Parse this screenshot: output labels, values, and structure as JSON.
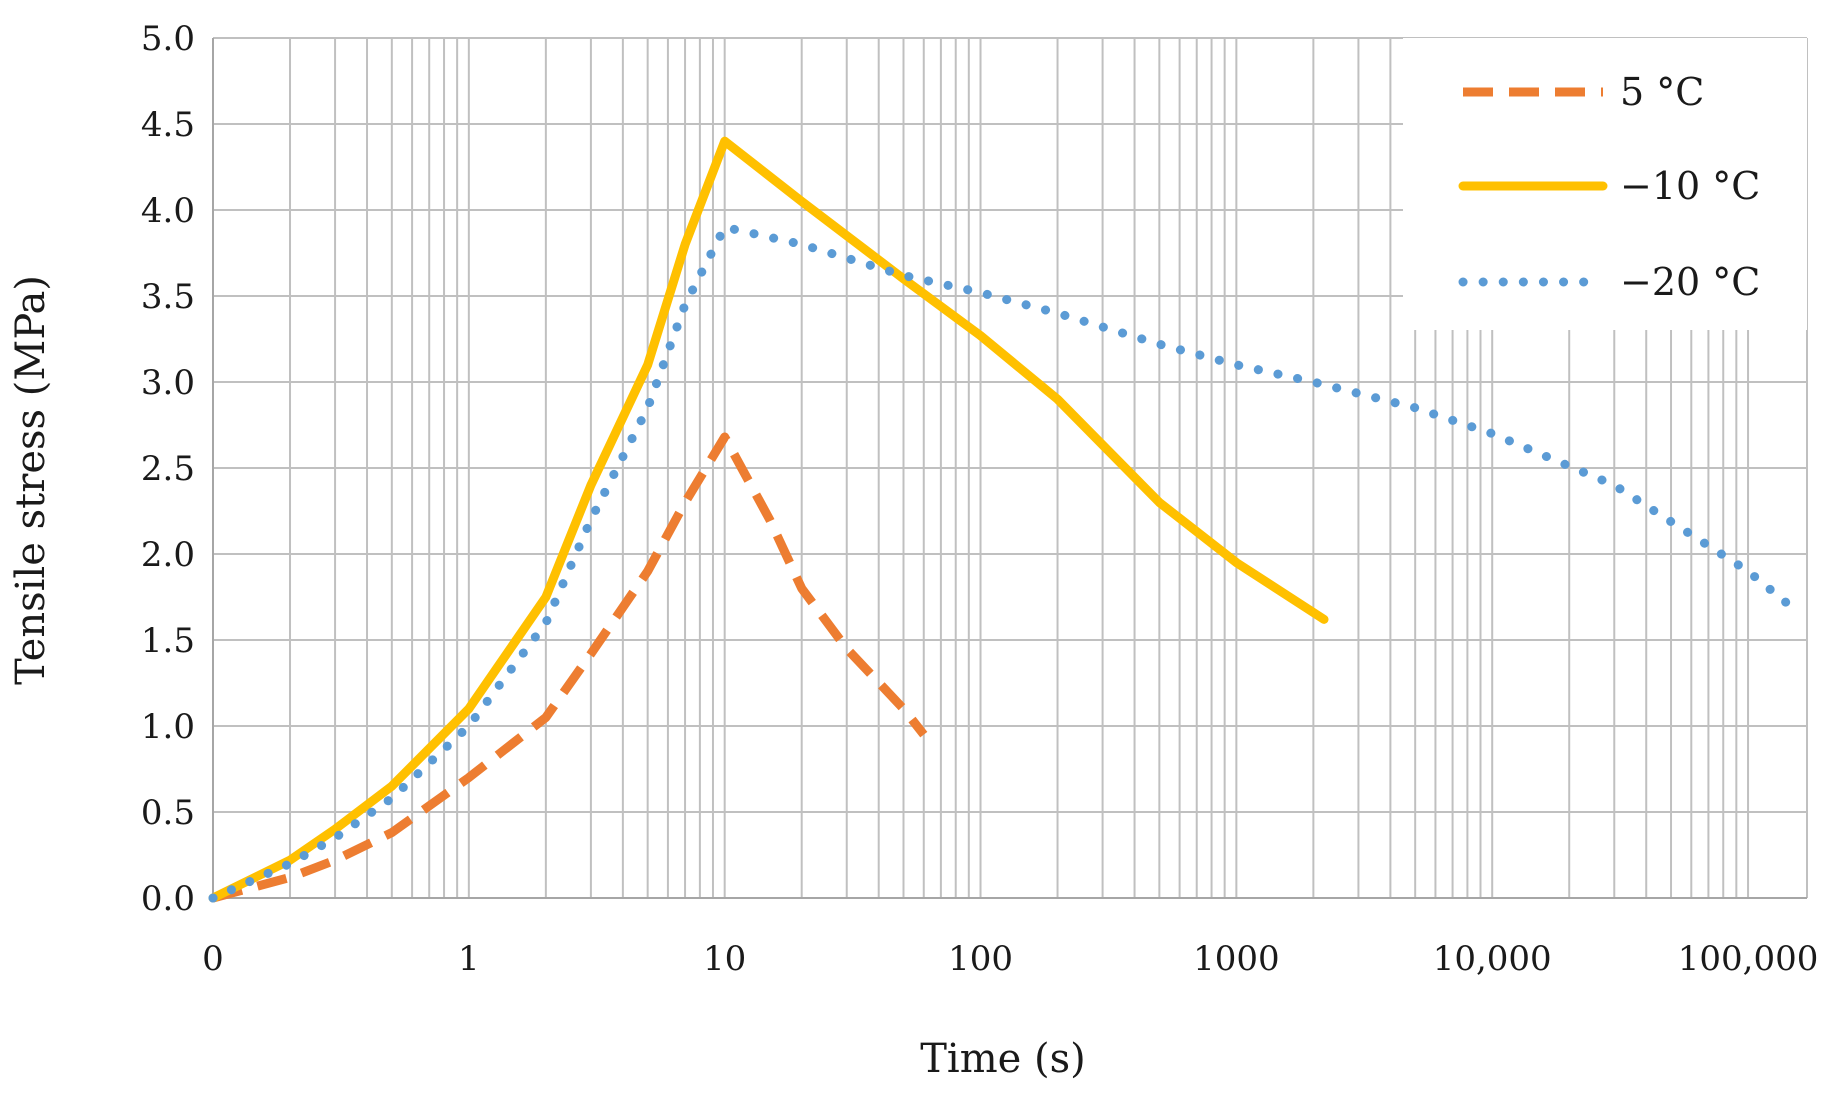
{
  "chart_data": {
    "type": "line",
    "title": "",
    "xlabel": "Time (s)",
    "ylabel": "Tensile stress (MPa)",
    "xscale": "log",
    "xlim": [
      0.1,
      170000
    ],
    "ylim": [
      0,
      5
    ],
    "grid": true,
    "legend_position": "top-right",
    "x_tick_labels": [
      {
        "value": 0.1,
        "label": "0"
      },
      {
        "value": 1,
        "label": "1"
      },
      {
        "value": 10,
        "label": "10"
      },
      {
        "value": 100,
        "label": "100"
      },
      {
        "value": 1000,
        "label": "1000"
      },
      {
        "value": 10000,
        "label": "10,000"
      },
      {
        "value": 100000,
        "label": "100,000"
      }
    ],
    "y_tick_labels": [
      "0.0",
      "0.5",
      "1.0",
      "1.5",
      "2.0",
      "2.5",
      "3.0",
      "3.5",
      "4.0",
      "4.5",
      "5.0"
    ],
    "y_ticks": [
      0,
      0.5,
      1,
      1.5,
      2,
      2.5,
      3,
      3.5,
      4,
      4.5,
      5
    ],
    "series": [
      {
        "name": "5 °C",
        "color": "#ED7D31",
        "style": "dashed",
        "x": [
          0.1,
          0.15,
          0.2,
          0.3,
          0.5,
          1,
          2,
          3,
          5,
          7,
          10,
          15,
          20,
          30,
          50,
          60
        ],
        "y": [
          0.0,
          0.07,
          0.12,
          0.22,
          0.38,
          0.7,
          1.05,
          1.42,
          1.9,
          2.3,
          2.68,
          2.2,
          1.8,
          1.45,
          1.1,
          0.95
        ]
      },
      {
        "name": "−10 °C",
        "color": "#FFC000",
        "style": "solid",
        "x": [
          0.1,
          0.2,
          0.3,
          0.5,
          1,
          2,
          3,
          5,
          7,
          10,
          20,
          50,
          100,
          200,
          500,
          1000,
          2200
        ],
        "y": [
          0.0,
          0.22,
          0.4,
          0.65,
          1.1,
          1.75,
          2.4,
          3.1,
          3.8,
          4.4,
          4.05,
          3.6,
          3.27,
          2.9,
          2.3,
          1.95,
          1.62
        ]
      },
      {
        "name": "−20 °C",
        "color": "#5B9BD5",
        "style": "dotted",
        "x": [
          0.1,
          0.2,
          0.3,
          0.5,
          1,
          2,
          3,
          5,
          7,
          10,
          20,
          50,
          100,
          200,
          500,
          1000,
          2000,
          5000,
          10000,
          30000,
          100000,
          160000
        ],
        "y": [
          0.0,
          0.2,
          0.35,
          0.58,
          1.0,
          1.6,
          2.2,
          2.85,
          3.45,
          3.9,
          3.8,
          3.62,
          3.52,
          3.4,
          3.22,
          3.1,
          3.0,
          2.85,
          2.7,
          2.4,
          1.9,
          1.65
        ]
      }
    ]
  }
}
